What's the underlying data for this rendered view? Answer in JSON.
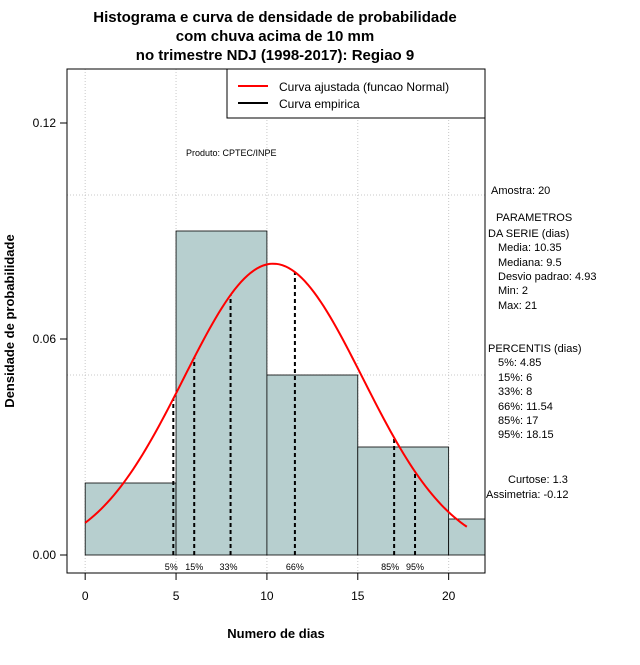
{
  "chart_data": {
    "type": "bar",
    "title_lines": [
      "Histograma e curva de densidade de probabilidade",
      "com chuva acima de 10 mm",
      "no trimestre NDJ (1998-2017): Regiao 9"
    ],
    "xlabel": "Numero de dias",
    "ylabel": "Densidade de probabilidade",
    "xlim": [
      -1,
      22
    ],
    "ylim": [
      -0.005,
      0.135
    ],
    "x_ticks": [
      0,
      5,
      10,
      15,
      20
    ],
    "y_ticks": [
      0.0,
      0.06,
      0.12
    ],
    "y_tick_labels": [
      "0.00",
      "0.06",
      "0.12"
    ],
    "grid": true,
    "grid_x": [
      0,
      5,
      10,
      15,
      20
    ],
    "grid_y": [
      0.05,
      0.1
    ],
    "legend_position": "top-right",
    "legend": [
      {
        "label": "Curva ajustada (funcao Normal)",
        "color": "#ff0000"
      },
      {
        "label": "Curva empirica",
        "color": "#000000"
      }
    ],
    "histogram": {
      "fill": "#b7cfcf",
      "bins": [
        {
          "x0": 0,
          "x1": 5,
          "density": 0.02
        },
        {
          "x0": 5,
          "x1": 10,
          "density": 0.09
        },
        {
          "x0": 10,
          "x1": 15,
          "density": 0.05
        },
        {
          "x0": 15,
          "x1": 20,
          "density": 0.03
        },
        {
          "x0": 20,
          "x1": 22,
          "density": 0.01
        }
      ]
    },
    "normal_fit": {
      "mean": 10.35,
      "sd": 4.93,
      "x_from": 0,
      "x_to": 21,
      "color": "#ff0000"
    },
    "percentiles": [
      {
        "label": "5%",
        "x": 4.85
      },
      {
        "label": "15%",
        "x": 6
      },
      {
        "label": "33%",
        "x": 8
      },
      {
        "label": "66%",
        "x": 11.54
      },
      {
        "label": "85%",
        "x": 17
      },
      {
        "label": "95%",
        "x": 18.15
      }
    ],
    "product_label": "Produto: CPTEC/INPE"
  },
  "side_panel": {
    "amostra": "Amostra: 20",
    "parametros_title_1": "PARAMETROS",
    "parametros_title_2": "DA SERIE (dias)",
    "media": "Media: 10.35",
    "mediana": "Mediana: 9.5",
    "desvio": "Desvio padrao: 4.93",
    "min": "Min: 2",
    "max": "Max: 21",
    "percentis_title": "PERCENTIS (dias)",
    "p5": "5%: 4.85",
    "p15": "15%: 6",
    "p33": "33%: 8",
    "p66": "66%: 11.54",
    "p85": "85%: 17",
    "p95": "95%: 18.15",
    "curtose": "Curtose: 1.3",
    "assimetria": "Assimetria: -0.12"
  }
}
